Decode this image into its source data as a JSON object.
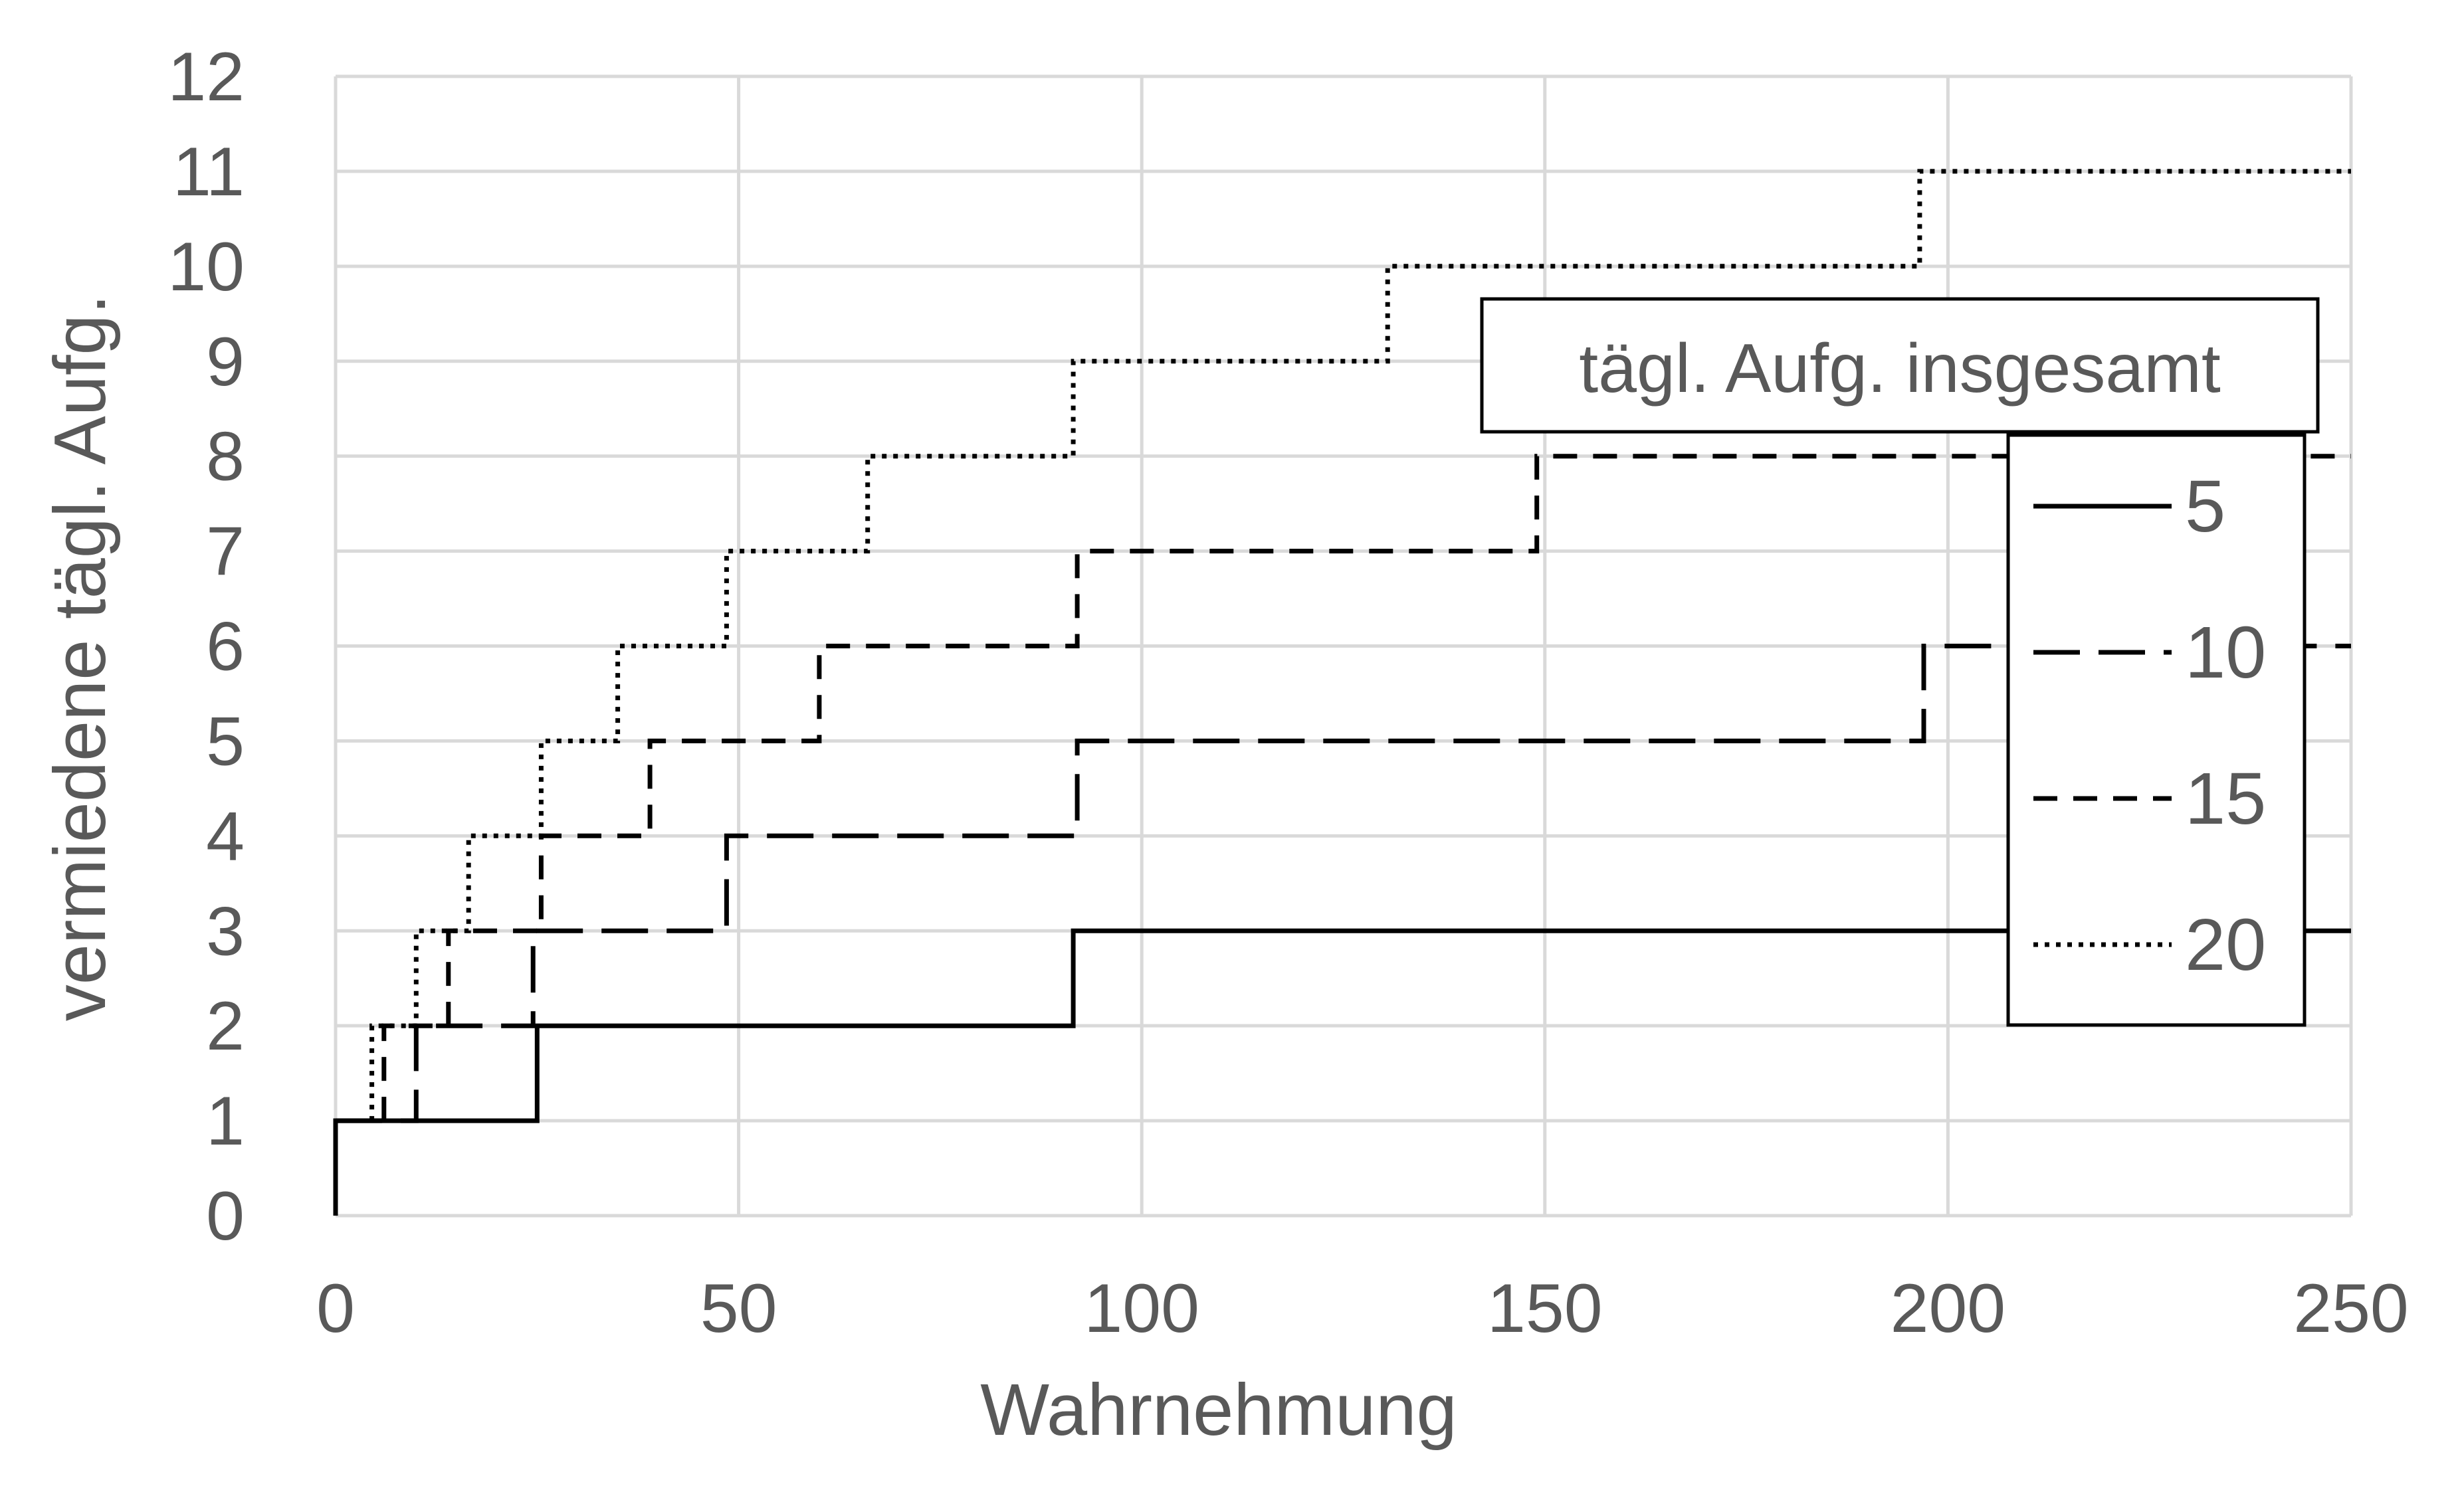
{
  "chart_data": {
    "type": "line",
    "step": true,
    "xlabel": "Wahrnehmung",
    "ylabel": "vermiedene tägl. Aufg.",
    "xlim": [
      0,
      250
    ],
    "ylim": [
      0,
      12
    ],
    "xticks": [
      "0",
      "50",
      "100",
      "150",
      "200",
      "250"
    ],
    "yticks": [
      "0",
      "1",
      "2",
      "3",
      "4",
      "5",
      "6",
      "7",
      "8",
      "9",
      "10",
      "11",
      "12"
    ],
    "grid": true,
    "legend": {
      "title": "tägl. Aufg. insgesamt",
      "placement": "right",
      "entries": [
        "5",
        "10",
        "15",
        "20"
      ]
    },
    "series": [
      {
        "name": "5",
        "dash": "solid",
        "points": [
          [
            0,
            0
          ],
          [
            0,
            1
          ],
          [
            25,
            1
          ],
          [
            25,
            2
          ],
          [
            91.5,
            2
          ],
          [
            91.5,
            3
          ],
          [
            250,
            3
          ]
        ]
      },
      {
        "name": "10",
        "dash": "long-dash",
        "points": [
          [
            0,
            1
          ],
          [
            10,
            1
          ],
          [
            10,
            2
          ],
          [
            24.5,
            2
          ],
          [
            24.5,
            3
          ],
          [
            48.5,
            3
          ],
          [
            48.5,
            4
          ],
          [
            92,
            4
          ],
          [
            92,
            5
          ],
          [
            197,
            5
          ],
          [
            197,
            6
          ],
          [
            250,
            6
          ]
        ]
      },
      {
        "name": "15",
        "dash": "short-dash",
        "points": [
          [
            6,
            1
          ],
          [
            6,
            2
          ],
          [
            14,
            2
          ],
          [
            14,
            3
          ],
          [
            25.5,
            3
          ],
          [
            25.5,
            4
          ],
          [
            39,
            4
          ],
          [
            39,
            5
          ],
          [
            60,
            5
          ],
          [
            60,
            6
          ],
          [
            92,
            6
          ],
          [
            92,
            7
          ],
          [
            149,
            7
          ],
          [
            149,
            8
          ],
          [
            250,
            8
          ]
        ]
      },
      {
        "name": "20",
        "dash": "dotted",
        "points": [
          [
            4.5,
            1
          ],
          [
            4.5,
            2
          ],
          [
            10,
            2
          ],
          [
            10,
            3
          ],
          [
            16.5,
            3
          ],
          [
            16.5,
            4
          ],
          [
            25.5,
            4
          ],
          [
            25.5,
            5
          ],
          [
            35,
            5
          ],
          [
            35,
            6
          ],
          [
            48.5,
            6
          ],
          [
            48.5,
            7
          ],
          [
            66,
            7
          ],
          [
            66,
            8
          ],
          [
            91.5,
            8
          ],
          [
            91.5,
            9
          ],
          [
            130.5,
            9
          ],
          [
            130.5,
            10
          ],
          [
            196.5,
            10
          ],
          [
            196.5,
            11
          ],
          [
            250,
            11
          ]
        ]
      }
    ]
  }
}
